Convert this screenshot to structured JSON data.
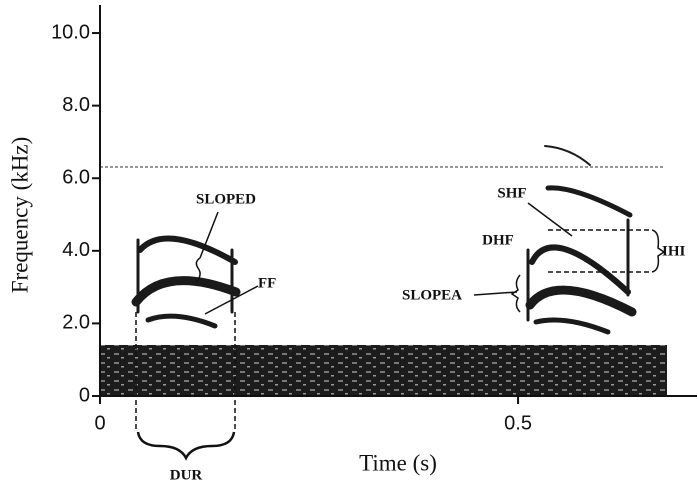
{
  "chart_data": {
    "type": "spectrogram",
    "x_label": "Time (s)",
    "y_label": "Frequency (kHz)",
    "xlim": [
      0,
      0.714
    ],
    "ylim": [
      0,
      10.8
    ],
    "xticks": [
      0,
      0.5
    ],
    "yticks": [
      {
        "value": 0,
        "label": "0"
      },
      {
        "value": 2,
        "label": "2.0"
      },
      {
        "value": 4,
        "label": "4.0"
      },
      {
        "value": 6,
        "label": "6.0"
      },
      {
        "value": 8,
        "label": "8.0"
      },
      {
        "value": 10,
        "label": "10.0"
      }
    ],
    "annotations": [
      "SLOPED",
      "FF",
      "SHF",
      "DHF",
      "SLOPEA",
      "IHI",
      "DUR"
    ]
  }
}
